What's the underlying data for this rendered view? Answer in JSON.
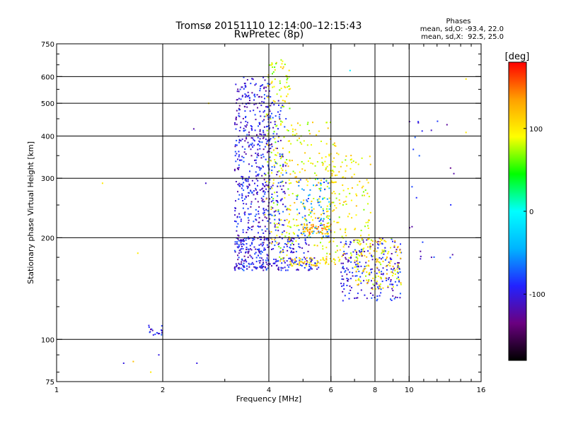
{
  "chart_data": {
    "type": "scatter",
    "title": "Tromsø 20151110 12:14:00–12:15:43",
    "subtitle": "RwPretec (8p)",
    "xlabel": "Frequency [MHz]",
    "ylabel": "Stationary phase Virtual Height [km]",
    "x_scale": "log",
    "y_scale": "log",
    "xlim": [
      1,
      16
    ],
    "ylim": [
      75,
      750
    ],
    "x_ticks": [
      1,
      2,
      4,
      6,
      8,
      10,
      16
    ],
    "y_ticks": [
      75,
      100,
      200,
      300,
      400,
      500,
      600,
      750
    ],
    "grid": true,
    "stats": {
      "heading": "Phases",
      "line1": "mean, sd,O: -93.4, 22.0",
      "line2": "mean, sd,X:  92.5, 25.0"
    },
    "colorbar": {
      "label": "[deg]",
      "ticks": [
        {
          "value": 100,
          "label": "100"
        },
        {
          "value": 0,
          "label": "0"
        },
        {
          "value": -100,
          "label": "-100"
        }
      ],
      "range": [
        -180,
        180
      ],
      "colors": [
        "#000000",
        "#6a0080",
        "#2222ff",
        "#00b4ff",
        "#00ffff",
        "#00ff00",
        "#ffff00",
        "#ffa000",
        "#ff0000"
      ]
    },
    "clusters": [
      {
        "x": [
          3.2,
          4.05
        ],
        "y": [
          160,
          600
        ],
        "phase": -100,
        "n": 550
      },
      {
        "x": [
          3.2,
          5.6
        ],
        "y": [
          160,
          175
        ],
        "phase": -95,
        "n": 130
      },
      {
        "x": [
          3.2,
          5.2
        ],
        "y": [
          180,
          200
        ],
        "phase": -100,
        "n": 110
      },
      {
        "x": [
          3.9,
          4.6
        ],
        "y": [
          170,
          680
        ],
        "phase": 90,
        "n": 180
      },
      {
        "x": [
          4.0,
          4.5
        ],
        "y": [
          200,
          520
        ],
        "phase": -95,
        "n": 110
      },
      {
        "x": [
          4.5,
          6.2
        ],
        "y": [
          185,
          440
        ],
        "phase": 95,
        "n": 190
      },
      {
        "x": [
          4.8,
          6.0
        ],
        "y": [
          200,
          300
        ],
        "phase": -60,
        "n": 90
      },
      {
        "x": [
          5.0,
          6.0
        ],
        "y": [
          205,
          220
        ],
        "phase": 130,
        "n": 50
      },
      {
        "x": [
          4.6,
          6.4
        ],
        "y": [
          165,
          175
        ],
        "phase": 110,
        "n": 60
      },
      {
        "x": [
          5.8,
          7.8
        ],
        "y": [
          170,
          360
        ],
        "phase": 95,
        "n": 150
      },
      {
        "x": [
          6.4,
          9.5
        ],
        "y": [
          130,
          200
        ],
        "phase": -100,
        "n": 220
      },
      {
        "x": [
          7.0,
          9.5
        ],
        "y": [
          140,
          200
        ],
        "phase": 100,
        "n": 140
      },
      {
        "x": [
          10.0,
          13.5
        ],
        "y": [
          170,
          470
        ],
        "phase": -100,
        "n": 25
      },
      {
        "x": [
          1.8,
          2.0
        ],
        "y": [
          103,
          110
        ],
        "phase": -100,
        "n": 18
      }
    ],
    "points": [
      {
        "x": 2.45,
        "y": 420,
        "phase": -120
      },
      {
        "x": 2.65,
        "y": 290,
        "phase": -110
      },
      {
        "x": 2.7,
        "y": 500,
        "phase": 100
      },
      {
        "x": 1.35,
        "y": 290,
        "phase": 100
      },
      {
        "x": 1.7,
        "y": 180,
        "phase": 100
      },
      {
        "x": 1.55,
        "y": 85,
        "phase": -100
      },
      {
        "x": 1.65,
        "y": 86,
        "phase": 120
      },
      {
        "x": 1.85,
        "y": 80,
        "phase": 100
      },
      {
        "x": 1.95,
        "y": 90,
        "phase": -100
      },
      {
        "x": 2.5,
        "y": 85,
        "phase": -100
      },
      {
        "x": 14.5,
        "y": 590,
        "phase": 100
      },
      {
        "x": 14.5,
        "y": 410,
        "phase": 100
      },
      {
        "x": 6.8,
        "y": 625,
        "phase": -10
      }
    ]
  }
}
